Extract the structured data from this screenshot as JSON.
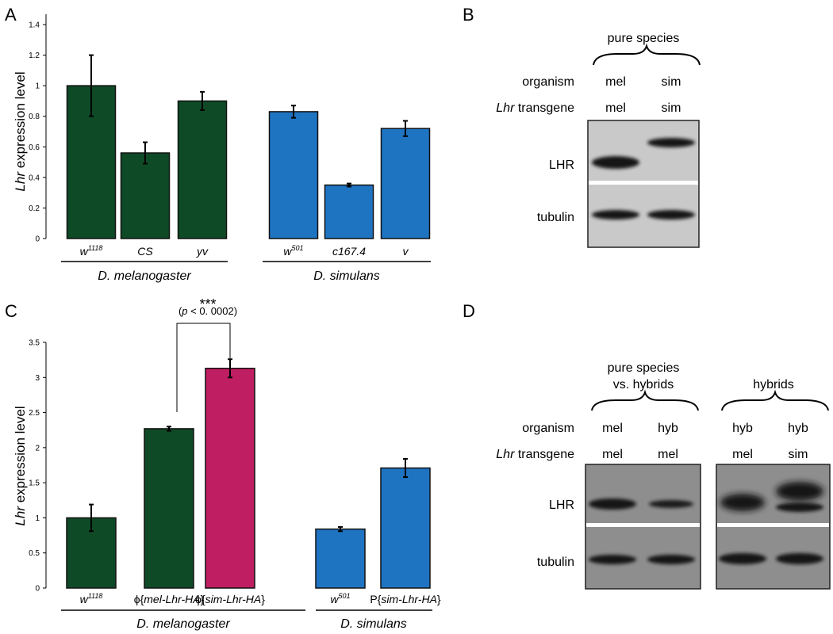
{
  "panels": {
    "A": {
      "letter": "A"
    },
    "B": {
      "letter": "B"
    },
    "C": {
      "letter": "C"
    },
    "D": {
      "letter": "D"
    }
  },
  "chart_data": [
    {
      "panel": "A",
      "type": "bar",
      "ylabel_italic": "Lhr",
      "ylabel_rest": " expression level",
      "ylim": [
        0,
        1.4
      ],
      "yticks": [
        "0",
        "0.2",
        "0.4",
        "0.6",
        "0.8",
        "1",
        "1.2",
        "1.4"
      ],
      "colors": {
        "melanogaster": "#0e4a26",
        "simulans": "#1f74c2"
      },
      "groups": [
        {
          "name": "D. melanogaster",
          "categories": [
            {
              "base": "w",
              "sup": "1118"
            },
            {
              "base": "CS",
              "sup": ""
            },
            {
              "base": "yv",
              "sup": ""
            }
          ],
          "values": [
            1.0,
            0.56,
            0.9
          ],
          "errors": [
            0.2,
            0.07,
            0.06
          ]
        },
        {
          "name": "D. simulans",
          "categories": [
            {
              "base": "w",
              "sup": "501"
            },
            {
              "base": "c167.4",
              "sup": ""
            },
            {
              "base": "v",
              "sup": ""
            }
          ],
          "values": [
            0.83,
            0.35,
            0.72
          ],
          "errors": [
            0.04,
            0.01,
            0.05
          ]
        }
      ]
    },
    {
      "panel": "C",
      "type": "bar",
      "ylabel_italic": "Lhr",
      "ylabel_rest": " expression level",
      "ylim": [
        0,
        3.5
      ],
      "yticks": [
        "0",
        "0.5",
        "1",
        "1.5",
        "2",
        "2.5",
        "3",
        "3.5"
      ],
      "colors": {
        "melanogaster": "#0e4a26",
        "simulans": "#1f74c2",
        "sim_transgene": "#bf1e62"
      },
      "groups": [
        {
          "name": "D. melanogaster",
          "categories": [
            {
              "pre": "",
              "italic": "w",
              "sup": "1118",
              "post": ""
            },
            {
              "pre": "ϕ{",
              "italic": "mel-Lhr-HA",
              "sup": "",
              "post": "}"
            },
            {
              "pre": "ϕ{",
              "italic": "sim-Lhr-HA",
              "sup": "",
              "post": "}"
            }
          ],
          "values": [
            1.0,
            2.27,
            3.13
          ],
          "errors": [
            0.19,
            0.03,
            0.13
          ],
          "bar_colors": [
            "melanogaster",
            "melanogaster",
            "sim_transgene"
          ]
        },
        {
          "name": "D. simulans",
          "categories": [
            {
              "pre": "",
              "italic": "w",
              "sup": "501",
              "post": ""
            },
            {
              "pre": "P{",
              "italic": "sim-Lhr-HA",
              "sup": "",
              "post": "}"
            }
          ],
          "values": [
            0.84,
            1.71
          ],
          "errors": [
            0.03,
            0.13
          ],
          "bar_colors": [
            "simulans",
            "simulans"
          ]
        }
      ],
      "significance": {
        "stars": "***",
        "p_open": "(",
        "p_italic": "p",
        "p_rest": " < 0. 0002)"
      }
    }
  ],
  "blot_B": {
    "brace_label": "pure species",
    "row1_label": "organism",
    "row2_label_italic": "Lhr",
    "row2_label_rest": " transgene",
    "lanes": [
      {
        "organism": "mel",
        "transgene": "mel"
      },
      {
        "organism": "sim",
        "transgene": "sim"
      }
    ],
    "band1": "LHR",
    "band2": "tubulin"
  },
  "blot_D": {
    "brace1_label_line1": "pure species",
    "brace1_label_line2": "vs. hybrids",
    "brace2_label": "hybrids",
    "row1_label": "organism",
    "row2_label_italic": "Lhr",
    "row2_label_rest": " transgene",
    "lanes": [
      {
        "organism": "mel",
        "transgene": "mel"
      },
      {
        "organism": "hyb",
        "transgene": "mel"
      },
      {
        "organism": "hyb",
        "transgene": "mel"
      },
      {
        "organism": "hyb",
        "transgene": "sim"
      }
    ],
    "band1": "LHR",
    "band2": "tubulin"
  }
}
